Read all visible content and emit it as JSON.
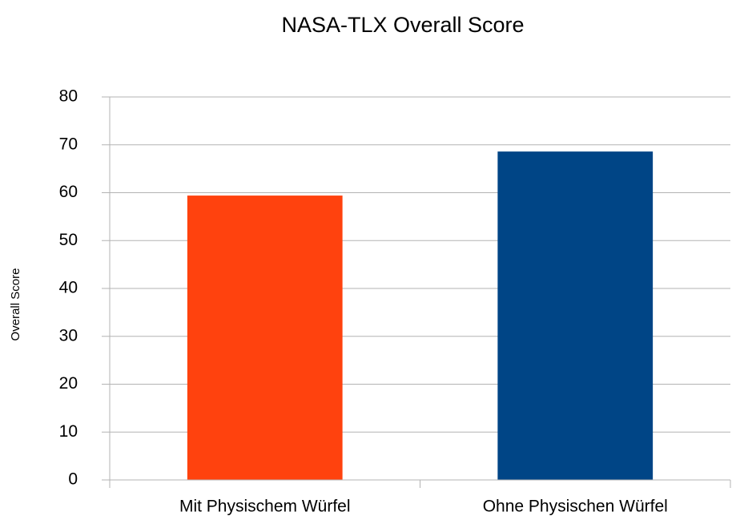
{
  "chart_data": {
    "type": "bar",
    "title": "NASA-TLX Overall Score",
    "y_label": "Overall Score",
    "categories": [
      "Mit Physischem Würfel",
      "Ohne Physischen Würfel"
    ],
    "values": [
      59.4,
      68.6
    ],
    "colors": [
      "#ff420e",
      "#004586"
    ],
    "ylim": [
      0,
      80
    ],
    "yticks": [
      0,
      10,
      20,
      30,
      40,
      50,
      60,
      70,
      80
    ],
    "grid": true
  }
}
